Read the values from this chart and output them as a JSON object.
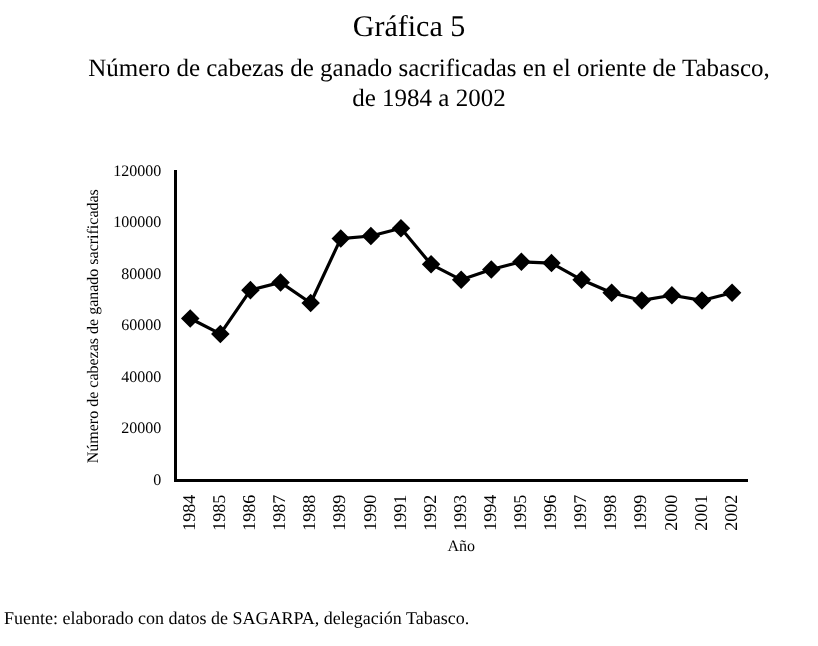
{
  "chart_data": {
    "type": "line",
    "title": "Gráfica 5",
    "subtitle": "Número de cabezas de ganado sacrificadas en el oriente de Tabasco, de 1984 a 2002",
    "xlabel": "Año",
    "ylabel": "Número de cabezas de ganado sacrificadas",
    "categories": [
      "1984",
      "1985",
      "1986",
      "1987",
      "1988",
      "1989",
      "1990",
      "1991",
      "1992",
      "1993",
      "1994",
      "1995",
      "1996",
      "1997",
      "1998",
      "1999",
      "2000",
      "2001",
      "2002"
    ],
    "series": [
      {
        "color": "#000000",
        "values": [
          63000,
          57000,
          74000,
          77000,
          69000,
          94000,
          95000,
          98000,
          84000,
          78000,
          82000,
          85000,
          84500,
          78000,
          73000,
          70000,
          72000,
          70000,
          73000
        ]
      }
    ],
    "ylim": [
      0,
      120000
    ],
    "yticks": [
      0,
      20000,
      40000,
      60000,
      80000,
      100000,
      120000
    ],
    "grid": false,
    "legend": false,
    "marker": "diamond",
    "line_style": "solid",
    "annotations": [
      "Fuente: elaborado con datos de SAGARPA, delegación Tabasco."
    ]
  }
}
